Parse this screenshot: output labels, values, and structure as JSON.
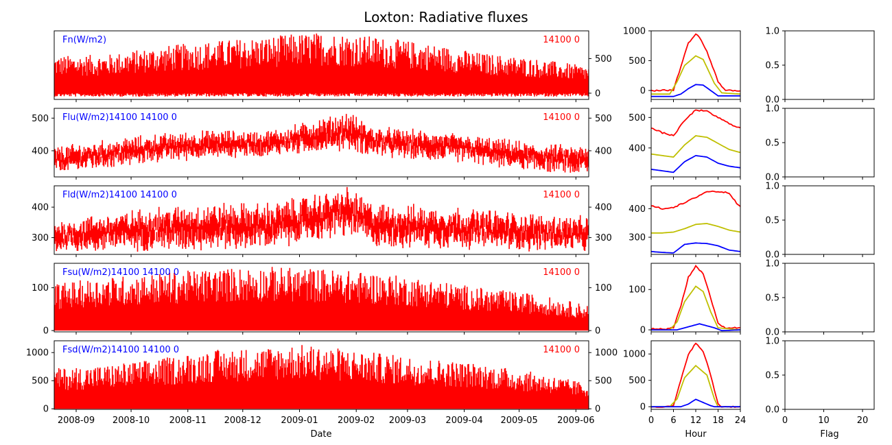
{
  "title": "Loxton: Radiative fluxes",
  "colors": {
    "series": "#ff0000",
    "label": "#0000ff",
    "max": "#ff0000",
    "mean": "#bfbf00",
    "min": "#0000ff",
    "axis": "#000000"
  },
  "chart_data": [
    {
      "type": "line",
      "panel": "Fn",
      "label": "Fn(W/m2)",
      "count_text": "14100 0",
      "x_range": [
        "2008-08-20",
        "2009-06-08"
      ],
      "x_ticks": [
        "2008-09",
        "2008-10",
        "2008-11",
        "2008-12",
        "2009-01",
        "2009-02",
        "2009-03",
        "2009-04",
        "2009-05",
        "2009-06"
      ],
      "ylim": [
        -90,
        900
      ],
      "right_ticks": [
        0,
        500
      ],
      "left_ticks": [],
      "envelope": {
        "upper": [
          [
            0.0,
            540
          ],
          [
            0.1,
            560
          ],
          [
            0.2,
            680
          ],
          [
            0.3,
            760
          ],
          [
            0.4,
            820
          ],
          [
            0.45,
            860
          ],
          [
            0.5,
            880
          ],
          [
            0.55,
            860
          ],
          [
            0.6,
            820
          ],
          [
            0.7,
            720
          ],
          [
            0.8,
            580
          ],
          [
            0.9,
            500
          ],
          [
            1.0,
            390
          ]
        ],
        "lower": -50
      }
    },
    {
      "type": "line",
      "panel": "Flu",
      "label": "Flu(W/m2)14100 14100 0",
      "count_text": "14100 0",
      "x_range": [
        "2008-08-20",
        "2009-06-08"
      ],
      "x_ticks": [
        "2008-09",
        "2008-10",
        "2008-11",
        "2008-12",
        "2009-01",
        "2009-02",
        "2009-03",
        "2009-04",
        "2009-05",
        "2009-06"
      ],
      "ylim": [
        320,
        530
      ],
      "left_ticks": [
        400,
        500
      ],
      "right_ticks": [
        400,
        500
      ],
      "band": {
        "lo": [
          [
            0.0,
            340
          ],
          [
            0.1,
            360
          ],
          [
            0.2,
            380
          ],
          [
            0.3,
            390
          ],
          [
            0.4,
            395
          ],
          [
            0.55,
            420
          ],
          [
            0.6,
            395
          ],
          [
            0.75,
            380
          ],
          [
            0.9,
            350
          ],
          [
            1.0,
            340
          ]
        ],
        "hi": [
          [
            0.0,
            400
          ],
          [
            0.1,
            420
          ],
          [
            0.2,
            440
          ],
          [
            0.3,
            450
          ],
          [
            0.4,
            450
          ],
          [
            0.55,
            500
          ],
          [
            0.6,
            460
          ],
          [
            0.75,
            440
          ],
          [
            0.9,
            410
          ],
          [
            1.0,
            400
          ]
        ]
      }
    },
    {
      "type": "line",
      "panel": "Fld",
      "label": "Fld(W/m2)14100 14100 0",
      "count_text": "14100 0",
      "x_range": [
        "2008-08-20",
        "2009-06-08"
      ],
      "x_ticks": [
        "2008-09",
        "2008-10",
        "2008-11",
        "2008-12",
        "2009-01",
        "2009-02",
        "2009-03",
        "2009-04",
        "2009-05",
        "2009-06"
      ],
      "ylim": [
        245,
        470
      ],
      "left_ticks": [
        300,
        400
      ],
      "right_ticks": [
        300,
        400
      ],
      "band": {
        "lo": [
          [
            0.0,
            265
          ],
          [
            0.1,
            275
          ],
          [
            0.2,
            280
          ],
          [
            0.3,
            285
          ],
          [
            0.4,
            285
          ],
          [
            0.55,
            330
          ],
          [
            0.6,
            290
          ],
          [
            0.75,
            285
          ],
          [
            0.9,
            275
          ],
          [
            1.0,
            270
          ]
        ],
        "hi": [
          [
            0.0,
            340
          ],
          [
            0.1,
            360
          ],
          [
            0.2,
            380
          ],
          [
            0.3,
            390
          ],
          [
            0.4,
            390
          ],
          [
            0.55,
            440
          ],
          [
            0.6,
            390
          ],
          [
            0.75,
            380
          ],
          [
            0.9,
            360
          ],
          [
            1.0,
            350
          ]
        ]
      }
    },
    {
      "type": "line",
      "panel": "Fsu",
      "label": "Fsu(W/m2)14100 14100 0",
      "count_text": "14100 0",
      "x_range": [
        "2008-08-20",
        "2009-06-08"
      ],
      "x_ticks": [
        "2008-09",
        "2008-10",
        "2008-11",
        "2008-12",
        "2009-01",
        "2009-02",
        "2009-03",
        "2009-04",
        "2009-05",
        "2009-06"
      ],
      "ylim": [
        -3,
        157
      ],
      "left_ticks": [
        0,
        100
      ],
      "right_ticks": [
        0,
        100
      ],
      "envelope": {
        "upper": [
          [
            0.0,
            110
          ],
          [
            0.1,
            125
          ],
          [
            0.2,
            135
          ],
          [
            0.3,
            145
          ],
          [
            0.4,
            150
          ],
          [
            0.5,
            145
          ],
          [
            0.6,
            135
          ],
          [
            0.7,
            120
          ],
          [
            0.8,
            100
          ],
          [
            0.9,
            85
          ],
          [
            1.0,
            60
          ]
        ],
        "lower": 0
      }
    },
    {
      "type": "line",
      "panel": "Fsd",
      "label": "Fsd(W/m2)14100 14100 0",
      "count_text": "14100 0",
      "x_range": [
        "2008-08-20",
        "2009-06-08"
      ],
      "x_ticks": [
        "2008-09",
        "2008-10",
        "2008-11",
        "2008-12",
        "2009-01",
        "2009-02",
        "2009-03",
        "2009-04",
        "2009-05",
        "2009-06"
      ],
      "ylim": [
        -10,
        1210
      ],
      "left_ticks": [
        0,
        500,
        1000
      ],
      "right_ticks": [
        0,
        500,
        1000
      ],
      "envelope": {
        "upper": [
          [
            0.0,
            720
          ],
          [
            0.1,
            780
          ],
          [
            0.2,
            900
          ],
          [
            0.3,
            1050
          ],
          [
            0.4,
            1100
          ],
          [
            0.45,
            1150
          ],
          [
            0.5,
            1120
          ],
          [
            0.6,
            1000
          ],
          [
            0.7,
            900
          ],
          [
            0.8,
            800
          ],
          [
            0.9,
            650
          ],
          [
            1.0,
            450
          ]
        ],
        "lower": 0
      }
    }
  ],
  "diurnal": [
    {
      "panel": "Fn",
      "ylim": [
        -150,
        1000
      ],
      "ticks": [
        0,
        500,
        1000
      ],
      "max": [
        [
          0,
          0
        ],
        [
          3,
          0
        ],
        [
          6,
          10
        ],
        [
          8,
          400
        ],
        [
          10,
          800
        ],
        [
          12,
          940
        ],
        [
          13,
          900
        ],
        [
          15,
          650
        ],
        [
          18,
          150
        ],
        [
          20,
          0
        ],
        [
          24,
          0
        ]
      ],
      "mean": [
        [
          0,
          -60
        ],
        [
          5,
          -60
        ],
        [
          7,
          150
        ],
        [
          9,
          420
        ],
        [
          12,
          580
        ],
        [
          14,
          520
        ],
        [
          17,
          120
        ],
        [
          19,
          -40
        ],
        [
          24,
          -60
        ]
      ],
      "min": [
        [
          0,
          -100
        ],
        [
          6,
          -100
        ],
        [
          8,
          -60
        ],
        [
          10,
          30
        ],
        [
          12,
          100
        ],
        [
          14,
          90
        ],
        [
          16,
          0
        ],
        [
          18,
          -90
        ],
        [
          24,
          -90
        ]
      ]
    },
    {
      "panel": "Flu",
      "ylim": [
        305,
        530
      ],
      "ticks": [
        400,
        500
      ],
      "max": [
        [
          0,
          465
        ],
        [
          3,
          450
        ],
        [
          6,
          440
        ],
        [
          9,
          490
        ],
        [
          12,
          525
        ],
        [
          15,
          520
        ],
        [
          18,
          500
        ],
        [
          21,
          480
        ],
        [
          24,
          465
        ]
      ],
      "mean": [
        [
          0,
          380
        ],
        [
          3,
          375
        ],
        [
          6,
          370
        ],
        [
          9,
          410
        ],
        [
          12,
          440
        ],
        [
          15,
          435
        ],
        [
          18,
          415
        ],
        [
          21,
          395
        ],
        [
          24,
          385
        ]
      ],
      "min": [
        [
          0,
          330
        ],
        [
          3,
          325
        ],
        [
          6,
          320
        ],
        [
          9,
          355
        ],
        [
          12,
          375
        ],
        [
          15,
          370
        ],
        [
          18,
          350
        ],
        [
          21,
          340
        ],
        [
          24,
          335
        ]
      ]
    },
    {
      "panel": "Fld",
      "ylim": [
        240,
        480
      ],
      "ticks": [
        300,
        400
      ],
      "max": [
        [
          0,
          410
        ],
        [
          3,
          400
        ],
        [
          6,
          405
        ],
        [
          9,
          420
        ],
        [
          12,
          440
        ],
        [
          15,
          460
        ],
        [
          18,
          460
        ],
        [
          21,
          455
        ],
        [
          23,
          420
        ],
        [
          24,
          410
        ]
      ],
      "mean": [
        [
          0,
          315
        ],
        [
          3,
          315
        ],
        [
          6,
          318
        ],
        [
          9,
          330
        ],
        [
          12,
          345
        ],
        [
          15,
          348
        ],
        [
          18,
          338
        ],
        [
          21,
          325
        ],
        [
          24,
          318
        ]
      ],
      "min": [
        [
          0,
          250
        ],
        [
          3,
          247
        ],
        [
          6,
          245
        ],
        [
          9,
          275
        ],
        [
          12,
          280
        ],
        [
          15,
          278
        ],
        [
          18,
          270
        ],
        [
          21,
          255
        ],
        [
          24,
          250
        ]
      ]
    },
    {
      "panel": "Fsu",
      "ylim": [
        -5,
        165
      ],
      "ticks": [
        0,
        100
      ],
      "max": [
        [
          0,
          2
        ],
        [
          4,
          2
        ],
        [
          6,
          5
        ],
        [
          8,
          60
        ],
        [
          10,
          130
        ],
        [
          12,
          158
        ],
        [
          14,
          140
        ],
        [
          16,
          80
        ],
        [
          18,
          15
        ],
        [
          20,
          5
        ],
        [
          24,
          5
        ]
      ],
      "mean": [
        [
          0,
          0
        ],
        [
          5,
          0
        ],
        [
          7,
          20
        ],
        [
          9,
          70
        ],
        [
          12,
          108
        ],
        [
          14,
          95
        ],
        [
          16,
          45
        ],
        [
          18,
          5
        ],
        [
          24,
          0
        ]
      ],
      "min": [
        [
          0,
          0
        ],
        [
          7,
          0
        ],
        [
          9,
          5
        ],
        [
          11,
          10
        ],
        [
          13,
          15
        ],
        [
          15,
          10
        ],
        [
          17,
          5
        ],
        [
          19,
          -2
        ],
        [
          24,
          0
        ]
      ]
    },
    {
      "panel": "Fsd",
      "ylim": [
        -50,
        1250
      ],
      "ticks": [
        0,
        500,
        1000
      ],
      "max": [
        [
          0,
          0
        ],
        [
          5,
          0
        ],
        [
          6,
          20
        ],
        [
          8,
          500
        ],
        [
          10,
          1000
        ],
        [
          12,
          1200
        ],
        [
          14,
          1050
        ],
        [
          16,
          600
        ],
        [
          18,
          50
        ],
        [
          19,
          0
        ],
        [
          24,
          0
        ]
      ],
      "mean": [
        [
          0,
          0
        ],
        [
          5,
          0
        ],
        [
          7,
          150
        ],
        [
          9,
          550
        ],
        [
          12,
          780
        ],
        [
          15,
          600
        ],
        [
          17,
          150
        ],
        [
          18,
          0
        ],
        [
          24,
          0
        ]
      ],
      "min": [
        [
          0,
          0
        ],
        [
          8,
          0
        ],
        [
          10,
          50
        ],
        [
          12,
          140
        ],
        [
          14,
          80
        ],
        [
          16,
          20
        ],
        [
          17,
          0
        ],
        [
          24,
          0
        ]
      ]
    }
  ],
  "hour_axis": {
    "xlim": [
      0,
      24
    ],
    "ticks": [
      0,
      6,
      12,
      18,
      24
    ],
    "xlabel": "Hour"
  },
  "flag_axis": {
    "xlim": [
      0,
      23
    ],
    "ticks": [
      0,
      10,
      20
    ],
    "yticks": [
      "0.0",
      "0.5",
      "1.0"
    ],
    "xlabel": "Flag"
  },
  "date_xlabel": "Date"
}
